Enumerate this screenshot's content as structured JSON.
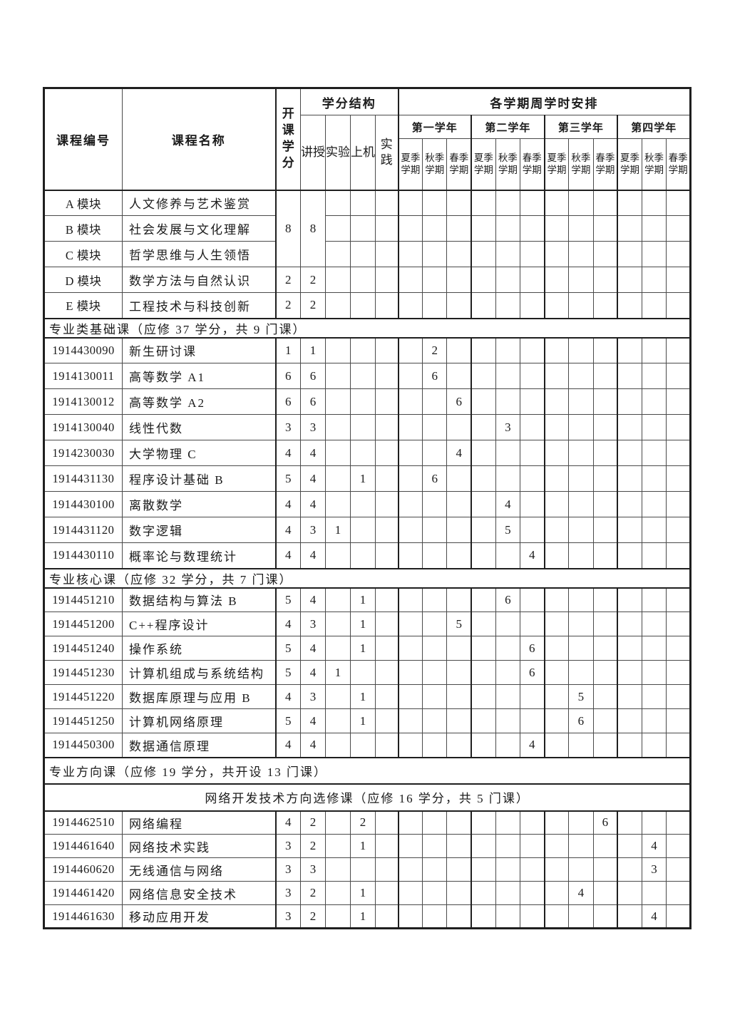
{
  "header": {
    "col_code": "课程编号",
    "col_name": "课程名称",
    "col_credit": "开课学分",
    "credit_structure": "学分结构",
    "credit_cols": [
      "讲授",
      "实验",
      "上机",
      "实践"
    ],
    "schedule_title": "各学期周学时安排",
    "years": [
      "第一学年",
      "第二学年",
      "第三学年",
      "第四学年"
    ],
    "terms": [
      "夏季学期",
      "秋季学期",
      "春季学期"
    ]
  },
  "rows": [
    {
      "kind": "course",
      "group": "module",
      "code": "A 模块",
      "name": "人文修养与艺术鉴赏",
      "credit": "8",
      "lecture": "8",
      "credit_rowspan": 3,
      "exp": "",
      "lab": "",
      "prac": "",
      "sem": [
        "",
        "",
        "",
        "",
        "",
        "",
        "",
        "",
        "",
        "",
        "",
        ""
      ]
    },
    {
      "kind": "course",
      "group": "module",
      "code": "B 模块",
      "name": "社会发展与文化理解",
      "merged": true,
      "exp": "",
      "lab": "",
      "prac": "",
      "sem": [
        "",
        "",
        "",
        "",
        "",
        "",
        "",
        "",
        "",
        "",
        "",
        ""
      ]
    },
    {
      "kind": "course",
      "group": "module",
      "code": "C 模块",
      "name": "哲学思维与人生领悟",
      "merged": true,
      "exp": "",
      "lab": "",
      "prac": "",
      "sem": [
        "",
        "",
        "",
        "",
        "",
        "",
        "",
        "",
        "",
        "",
        "",
        ""
      ]
    },
    {
      "kind": "course",
      "group": "module",
      "code": "D 模块",
      "name": "数学方法与自然认识",
      "credit": "2",
      "lecture": "2",
      "exp": "",
      "lab": "",
      "prac": "",
      "sem": [
        "",
        "",
        "",
        "",
        "",
        "",
        "",
        "",
        "",
        "",
        "",
        ""
      ]
    },
    {
      "kind": "course",
      "group": "module",
      "code": "E 模块",
      "name": "工程技术与科技创新",
      "credit": "2",
      "lecture": "2",
      "exp": "",
      "lab": "",
      "prac": "",
      "sem": [
        "",
        "",
        "",
        "",
        "",
        "",
        "",
        "",
        "",
        "",
        "",
        ""
      ]
    },
    {
      "kind": "section",
      "align": "left",
      "label": "专业类基础课（应修 37 学分，共 9 门课）"
    },
    {
      "kind": "course",
      "group": "base",
      "code": "1914430090",
      "name": "新生研讨课",
      "credit": "1",
      "lecture": "1",
      "exp": "",
      "lab": "",
      "prac": "",
      "sem": [
        "",
        "2",
        "",
        "",
        "",
        "",
        "",
        "",
        "",
        "",
        "",
        ""
      ]
    },
    {
      "kind": "course",
      "group": "base",
      "code": "1914130011",
      "name": "高等数学 A1",
      "credit": "6",
      "lecture": "6",
      "exp": "",
      "lab": "",
      "prac": "",
      "sem": [
        "",
        "6",
        "",
        "",
        "",
        "",
        "",
        "",
        "",
        "",
        "",
        ""
      ]
    },
    {
      "kind": "course",
      "group": "base",
      "code": "1914130012",
      "name": "高等数学 A2",
      "credit": "6",
      "lecture": "6",
      "exp": "",
      "lab": "",
      "prac": "",
      "sem": [
        "",
        "",
        "6",
        "",
        "",
        "",
        "",
        "",
        "",
        "",
        "",
        ""
      ]
    },
    {
      "kind": "course",
      "group": "base",
      "code": "1914130040",
      "name": "线性代数",
      "credit": "3",
      "lecture": "3",
      "exp": "",
      "lab": "",
      "prac": "",
      "sem": [
        "",
        "",
        "",
        "",
        "3",
        "",
        "",
        "",
        "",
        "",
        "",
        ""
      ]
    },
    {
      "kind": "course",
      "group": "base",
      "code": "1914230030",
      "name": "大学物理 C",
      "credit": "4",
      "lecture": "4",
      "exp": "",
      "lab": "",
      "prac": "",
      "sem": [
        "",
        "",
        "4",
        "",
        "",
        "",
        "",
        "",
        "",
        "",
        "",
        ""
      ]
    },
    {
      "kind": "course",
      "group": "base",
      "code": "1914431130",
      "name": "程序设计基础 B",
      "credit": "5",
      "lecture": "4",
      "exp": "",
      "lab": "1",
      "prac": "",
      "sem": [
        "",
        "6",
        "",
        "",
        "",
        "",
        "",
        "",
        "",
        "",
        "",
        ""
      ]
    },
    {
      "kind": "course",
      "group": "base",
      "code": "1914430100",
      "name": "离散数学",
      "credit": "4",
      "lecture": "4",
      "exp": "",
      "lab": "",
      "prac": "",
      "sem": [
        "",
        "",
        "",
        "",
        "4",
        "",
        "",
        "",
        "",
        "",
        "",
        ""
      ]
    },
    {
      "kind": "course",
      "group": "base",
      "code": "1914431120",
      "name": "数字逻辑",
      "credit": "4",
      "lecture": "3",
      "exp": "1",
      "lab": "",
      "prac": "",
      "sem": [
        "",
        "",
        "",
        "",
        "5",
        "",
        "",
        "",
        "",
        "",
        "",
        ""
      ]
    },
    {
      "kind": "course",
      "group": "base",
      "code": "1914430110",
      "name": "概率论与数理统计",
      "credit": "4",
      "lecture": "4",
      "exp": "",
      "lab": "",
      "prac": "",
      "sem": [
        "",
        "",
        "",
        "",
        "",
        "4",
        "",
        "",
        "",
        "",
        "",
        ""
      ]
    },
    {
      "kind": "section",
      "align": "left",
      "label": "专业核心课（应修 32 学分，共 7 门课）"
    },
    {
      "kind": "course",
      "group": "core",
      "code": "1914451210",
      "name": "数据结构与算法 B",
      "credit": "5",
      "lecture": "4",
      "exp": "",
      "lab": "1",
      "prac": "",
      "sem": [
        "",
        "",
        "",
        "",
        "6",
        "",
        "",
        "",
        "",
        "",
        "",
        ""
      ]
    },
    {
      "kind": "course",
      "group": "core",
      "code": "1914451200",
      "name": "C++程序设计",
      "credit": "4",
      "lecture": "3",
      "exp": "",
      "lab": "1",
      "prac": "",
      "sem": [
        "",
        "",
        "5",
        "",
        "",
        "",
        "",
        "",
        "",
        "",
        "",
        ""
      ]
    },
    {
      "kind": "course",
      "group": "core",
      "code": "1914451240",
      "name": "操作系统",
      "credit": "5",
      "lecture": "4",
      "exp": "",
      "lab": "1",
      "prac": "",
      "sem": [
        "",
        "",
        "",
        "",
        "",
        "6",
        "",
        "",
        "",
        "",
        "",
        ""
      ]
    },
    {
      "kind": "course",
      "group": "core",
      "code": "1914451230",
      "name": "计算机组成与系统结构",
      "credit": "5",
      "lecture": "4",
      "exp": "1",
      "lab": "",
      "prac": "",
      "sem": [
        "",
        "",
        "",
        "",
        "",
        "6",
        "",
        "",
        "",
        "",
        "",
        ""
      ]
    },
    {
      "kind": "course",
      "group": "core",
      "code": "1914451220",
      "name": "数据库原理与应用 B",
      "credit": "4",
      "lecture": "3",
      "exp": "",
      "lab": "1",
      "prac": "",
      "sem": [
        "",
        "",
        "",
        "",
        "",
        "",
        "",
        "5",
        "",
        "",
        "",
        ""
      ]
    },
    {
      "kind": "course",
      "group": "core",
      "code": "1914451250",
      "name": "计算机网络原理",
      "credit": "5",
      "lecture": "4",
      "exp": "",
      "lab": "1",
      "prac": "",
      "sem": [
        "",
        "",
        "",
        "",
        "",
        "",
        "",
        "6",
        "",
        "",
        "",
        ""
      ]
    },
    {
      "kind": "course",
      "group": "core",
      "code": "1914450300",
      "name": "数据通信原理",
      "credit": "4",
      "lecture": "4",
      "exp": "",
      "lab": "",
      "prac": "",
      "sem": [
        "",
        "",
        "",
        "",
        "",
        "4",
        "",
        "",
        "",
        "",
        "",
        ""
      ]
    },
    {
      "kind": "section",
      "align": "left",
      "label": "专业方向课（应修 19 学分，共开设 13 门课）"
    },
    {
      "kind": "section",
      "align": "center",
      "label": "网络开发技术方向选修课（应修 16 学分，共 5 门课）"
    },
    {
      "kind": "course",
      "group": "dir",
      "code": "1914462510",
      "name": "网络编程",
      "credit": "4",
      "lecture": "2",
      "exp": "",
      "lab": "2",
      "prac": "",
      "sem": [
        "",
        "",
        "",
        "",
        "",
        "",
        "",
        "",
        "6",
        "",
        "",
        ""
      ]
    },
    {
      "kind": "course",
      "group": "dir",
      "code": "1914461640",
      "name": "网络技术实践",
      "credit": "3",
      "lecture": "2",
      "exp": "",
      "lab": "1",
      "prac": "",
      "sem": [
        "",
        "",
        "",
        "",
        "",
        "",
        "",
        "",
        "",
        "",
        "4",
        ""
      ]
    },
    {
      "kind": "course",
      "group": "dir",
      "code": "1914460620",
      "name": "无线通信与网络",
      "credit": "3",
      "lecture": "3",
      "exp": "",
      "lab": "",
      "prac": "",
      "sem": [
        "",
        "",
        "",
        "",
        "",
        "",
        "",
        "",
        "",
        "",
        "3",
        ""
      ]
    },
    {
      "kind": "course",
      "group": "dir",
      "code": "1914461420",
      "name": "网络信息安全技术",
      "credit": "3",
      "lecture": "2",
      "exp": "",
      "lab": "1",
      "prac": "",
      "sem": [
        "",
        "",
        "",
        "",
        "",
        "",
        "",
        "4",
        "",
        "",
        "",
        ""
      ]
    },
    {
      "kind": "course",
      "group": "dir",
      "code": "1914461630",
      "name": "移动应用开发",
      "credit": "3",
      "lecture": "2",
      "exp": "",
      "lab": "1",
      "prac": "",
      "sem": [
        "",
        "",
        "",
        "",
        "",
        "",
        "",
        "",
        "",
        "",
        "4",
        ""
      ]
    }
  ]
}
